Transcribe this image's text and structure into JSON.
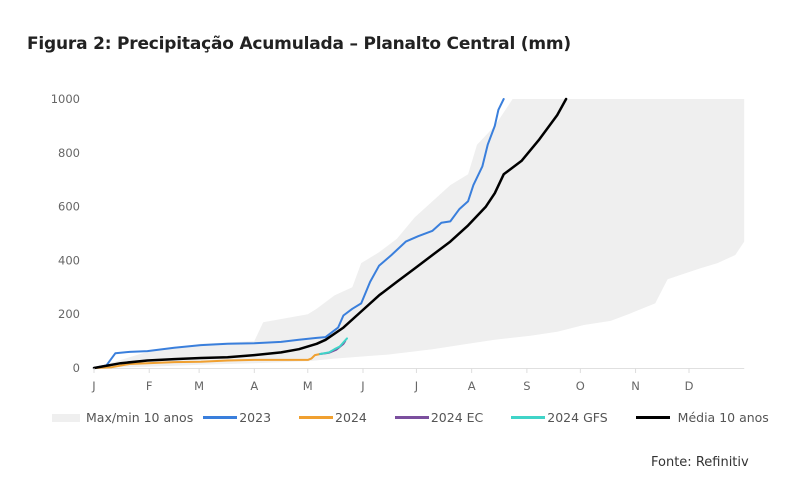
{
  "chart_data": {
    "type": "line",
    "title": "Figura 2: Precipitação Acumulada – Planalto Central (mm)",
    "xlabel": "",
    "ylabel": "",
    "x_unit": "day of year",
    "xlim": [
      0,
      365
    ],
    "ylim": [
      0,
      1000
    ],
    "grid": false,
    "x_ticks": [
      {
        "label": "J",
        "day": 0
      },
      {
        "label": "F",
        "day": 31
      },
      {
        "label": "M",
        "day": 59
      },
      {
        "label": "A",
        "day": 90
      },
      {
        "label": "M",
        "day": 120
      },
      {
        "label": "J",
        "day": 151
      },
      {
        "label": "J",
        "day": 181
      },
      {
        "label": "A",
        "day": 212
      },
      {
        "label": "S",
        "day": 243
      },
      {
        "label": "O",
        "day": 273
      },
      {
        "label": "N",
        "day": 304
      },
      {
        "label": "D",
        "day": 334
      }
    ],
    "y_ticks": [
      0,
      200,
      400,
      600,
      800,
      1000
    ],
    "band": {
      "name": "Max/min 10 anos",
      "color": "#efefef",
      "upper": [
        [
          0,
          0
        ],
        [
          30,
          60
        ],
        [
          60,
          90
        ],
        [
          90,
          100
        ],
        [
          95,
          170
        ],
        [
          120,
          200
        ],
        [
          125,
          220
        ],
        [
          135,
          270
        ],
        [
          145,
          300
        ],
        [
          150,
          390
        ],
        [
          160,
          430
        ],
        [
          170,
          480
        ],
        [
          180,
          560
        ],
        [
          190,
          620
        ],
        [
          200,
          680
        ],
        [
          210,
          720
        ],
        [
          215,
          830
        ],
        [
          225,
          900
        ],
        [
          230,
          950
        ],
        [
          235,
          1000
        ],
        [
          365,
          1000
        ]
      ],
      "lower": [
        [
          0,
          0
        ],
        [
          30,
          5
        ],
        [
          60,
          12
        ],
        [
          90,
          18
        ],
        [
          120,
          25
        ],
        [
          135,
          35
        ],
        [
          165,
          50
        ],
        [
          190,
          70
        ],
        [
          210,
          90
        ],
        [
          225,
          105
        ],
        [
          245,
          120
        ],
        [
          260,
          135
        ],
        [
          275,
          160
        ],
        [
          290,
          175
        ],
        [
          300,
          200
        ],
        [
          315,
          240
        ],
        [
          322,
          330
        ],
        [
          340,
          370
        ],
        [
          350,
          390
        ],
        [
          360,
          420
        ],
        [
          365,
          470
        ]
      ]
    },
    "series": [
      {
        "name": "2023",
        "color": "#3a7fdc",
        "width": 2,
        "points": [
          [
            0,
            0
          ],
          [
            7,
            10
          ],
          [
            12,
            55
          ],
          [
            20,
            60
          ],
          [
            30,
            63
          ],
          [
            45,
            75
          ],
          [
            60,
            85
          ],
          [
            75,
            90
          ],
          [
            90,
            92
          ],
          [
            105,
            97
          ],
          [
            115,
            105
          ],
          [
            125,
            112
          ],
          [
            130,
            115
          ],
          [
            137,
            150
          ],
          [
            140,
            195
          ],
          [
            145,
            220
          ],
          [
            150,
            240
          ],
          [
            155,
            320
          ],
          [
            160,
            380
          ],
          [
            167,
            420
          ],
          [
            175,
            470
          ],
          [
            182,
            490
          ],
          [
            190,
            510
          ],
          [
            195,
            540
          ],
          [
            200,
            545
          ],
          [
            205,
            590
          ],
          [
            210,
            620
          ],
          [
            213,
            680
          ],
          [
            218,
            750
          ],
          [
            221,
            830
          ],
          [
            225,
            900
          ],
          [
            227,
            960
          ],
          [
            230,
            1000
          ]
        ]
      },
      {
        "name": "2024",
        "color": "#f0a030",
        "width": 2,
        "points": [
          [
            0,
            0
          ],
          [
            10,
            3
          ],
          [
            20,
            15
          ],
          [
            30,
            18
          ],
          [
            45,
            22
          ],
          [
            60,
            23
          ],
          [
            75,
            28
          ],
          [
            90,
            30
          ],
          [
            105,
            30
          ],
          [
            120,
            30
          ],
          [
            122,
            35
          ],
          [
            124,
            48
          ],
          [
            127,
            52
          ]
        ]
      },
      {
        "name": "2024 EC",
        "color": "#7b4f9e",
        "width": 2,
        "points": [
          [
            127,
            52
          ],
          [
            132,
            57
          ],
          [
            136,
            68
          ],
          [
            140,
            90
          ],
          [
            141,
            100
          ]
        ]
      },
      {
        "name": "2024 GFS",
        "color": "#40d4c8",
        "width": 2,
        "points": [
          [
            127,
            52
          ],
          [
            132,
            58
          ],
          [
            135,
            70
          ],
          [
            138,
            80
          ],
          [
            140,
            95
          ],
          [
            142,
            110
          ]
        ]
      },
      {
        "name": "Média 10 anos",
        "color": "#000000",
        "width": 2.5,
        "points": [
          [
            0,
            0
          ],
          [
            15,
            18
          ],
          [
            30,
            28
          ],
          [
            45,
            33
          ],
          [
            60,
            37
          ],
          [
            75,
            40
          ],
          [
            90,
            48
          ],
          [
            105,
            58
          ],
          [
            115,
            70
          ],
          [
            125,
            90
          ],
          [
            130,
            105
          ],
          [
            140,
            150
          ],
          [
            150,
            210
          ],
          [
            160,
            270
          ],
          [
            170,
            320
          ],
          [
            180,
            370
          ],
          [
            190,
            420
          ],
          [
            200,
            470
          ],
          [
            210,
            530
          ],
          [
            220,
            600
          ],
          [
            225,
            650
          ],
          [
            230,
            720
          ],
          [
            240,
            770
          ],
          [
            250,
            850
          ],
          [
            260,
            940
          ],
          [
            265,
            1000
          ]
        ]
      }
    ],
    "legend": {
      "placement": "bottom",
      "entries": [
        "Max/min 10 anos",
        "2023",
        "2024",
        "2024 EC",
        "2024 GFS",
        "Média 10 anos"
      ]
    },
    "source": "Fonte: Refinitiv"
  }
}
